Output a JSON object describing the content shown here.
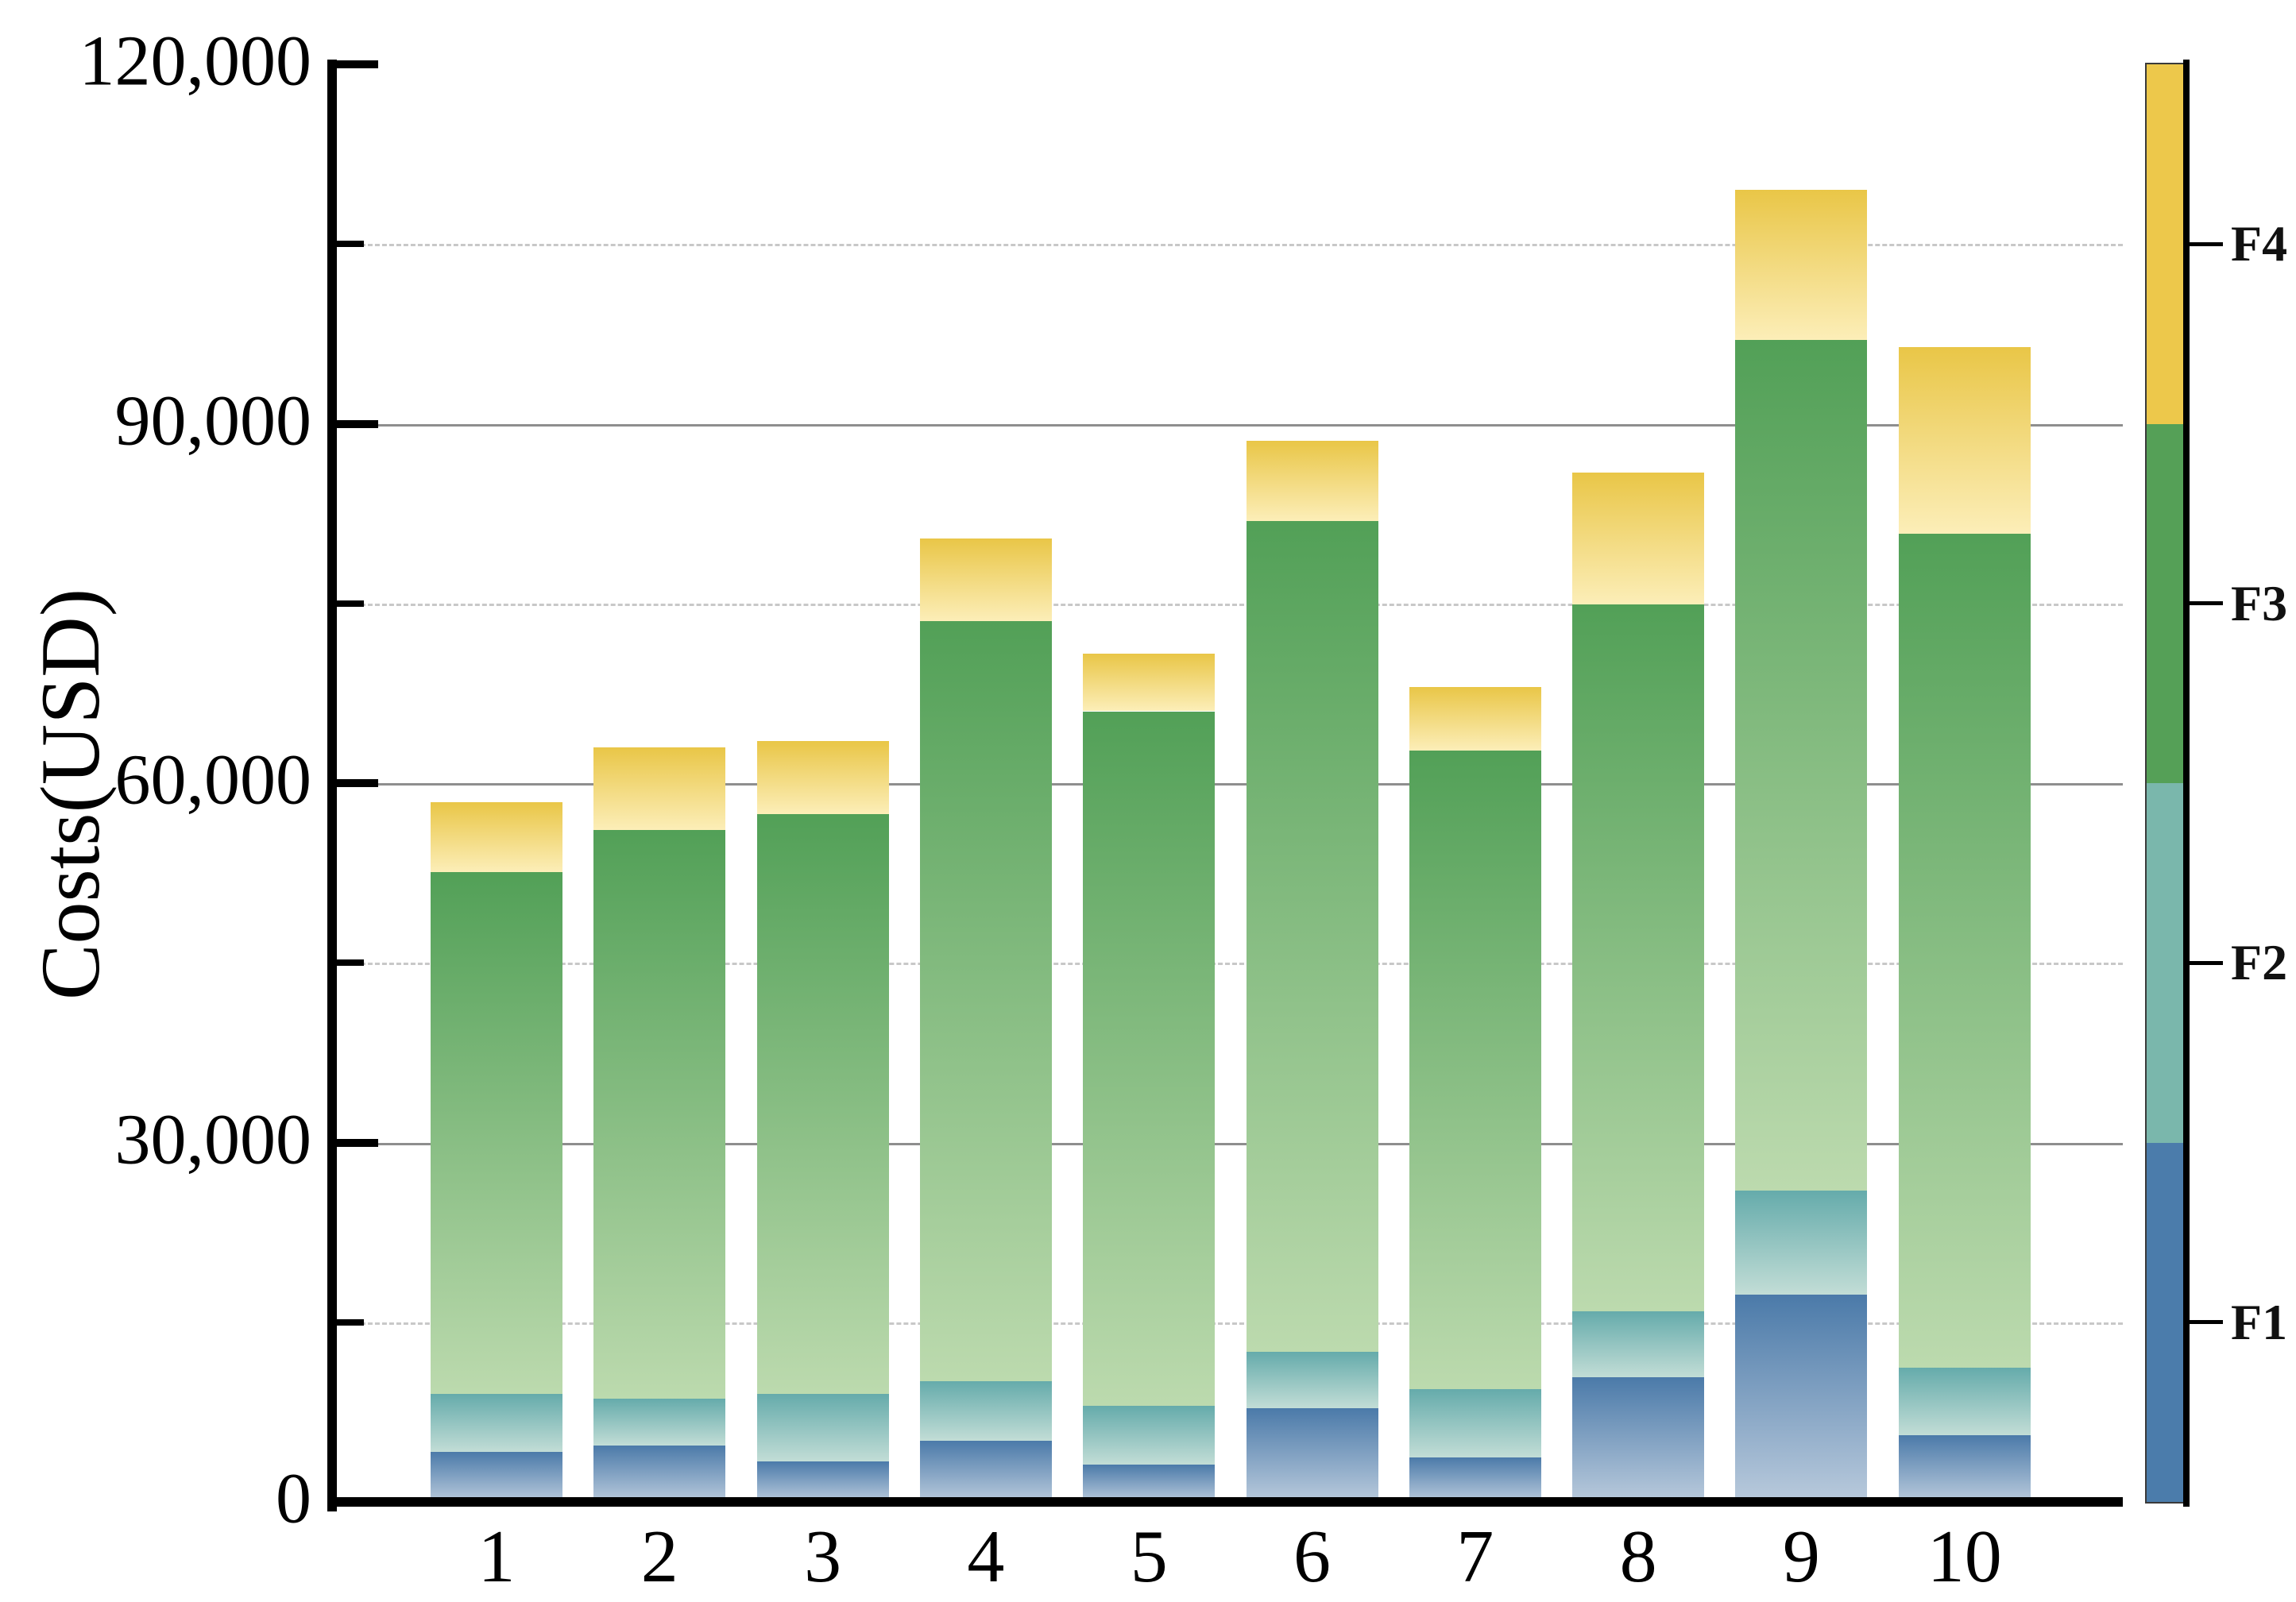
{
  "chart_data": {
    "type": "bar",
    "stacked": true,
    "title": "",
    "xlabel": "",
    "ylabel": "Costs(USD)",
    "categories": [
      "1",
      "2",
      "3",
      "4",
      "5",
      "6",
      "7",
      "8",
      "9",
      "10"
    ],
    "series": [
      {
        "name": "F1",
        "legend_color": "#4b7cab",
        "gradient_top": "#4b7aa9",
        "gradient_bottom": "#b9cadc",
        "values": [
          4200,
          4700,
          3400,
          5100,
          3100,
          7800,
          3700,
          10400,
          17300,
          5600
        ]
      },
      {
        "name": "F2",
        "legend_color": "#7ab7ac",
        "gradient_top": "#65abab",
        "gradient_bottom": "#c2ddd6",
        "values": [
          4800,
          3900,
          5600,
          5000,
          4900,
          4700,
          5700,
          5500,
          8700,
          5600
        ]
      },
      {
        "name": "F3",
        "legend_color": "#55a057",
        "gradient_top": "#52a057",
        "gradient_bottom": "#bcdaae",
        "values": [
          43600,
          47500,
          48400,
          63400,
          58000,
          69400,
          53300,
          59000,
          71000,
          69600
        ]
      },
      {
        "name": "F4",
        "legend_color": "#edc84b",
        "gradient_top": "#e9c647",
        "gradient_bottom": "#fceeb8",
        "values": [
          5800,
          6900,
          6100,
          6900,
          4800,
          6700,
          5300,
          11000,
          12500,
          15600
        ]
      }
    ],
    "totals": [
      58400,
      63000,
      63500,
      80400,
      70800,
      88600,
      68000,
      85900,
      109500,
      96400
    ],
    "y_axis": {
      "min": 0,
      "max": 120000,
      "major_ticks": [
        {
          "value": 0,
          "label": "0"
        },
        {
          "value": 30000,
          "label": "30,000"
        },
        {
          "value": 60000,
          "label": "60,000"
        },
        {
          "value": 90000,
          "label": "90,000"
        },
        {
          "value": 120000,
          "label": "120,000"
        }
      ],
      "minor_ticks": [
        15000,
        45000,
        75000,
        105000
      ]
    },
    "gridlines": {
      "solid": [
        30000,
        60000,
        90000
      ],
      "dashed": [
        15000,
        45000,
        75000,
        105000
      ]
    },
    "legend": {
      "position": "right-colorbar",
      "items_top_to_bottom": [
        {
          "name": "F4",
          "color": "#edc84b",
          "range": [
            90000,
            120000
          ],
          "tick_value": 105000
        },
        {
          "name": "F3",
          "color": "#55a057",
          "range": [
            60000,
            90000
          ],
          "tick_value": 75000
        },
        {
          "name": "F2",
          "color": "#7ab7ac",
          "range": [
            30000,
            60000
          ],
          "tick_value": 45000
        },
        {
          "name": "F1",
          "color": "#4b7cab",
          "range": [
            0,
            30000
          ],
          "tick_value": 15000
        }
      ]
    },
    "grid_on": true,
    "legend_position": "right"
  }
}
